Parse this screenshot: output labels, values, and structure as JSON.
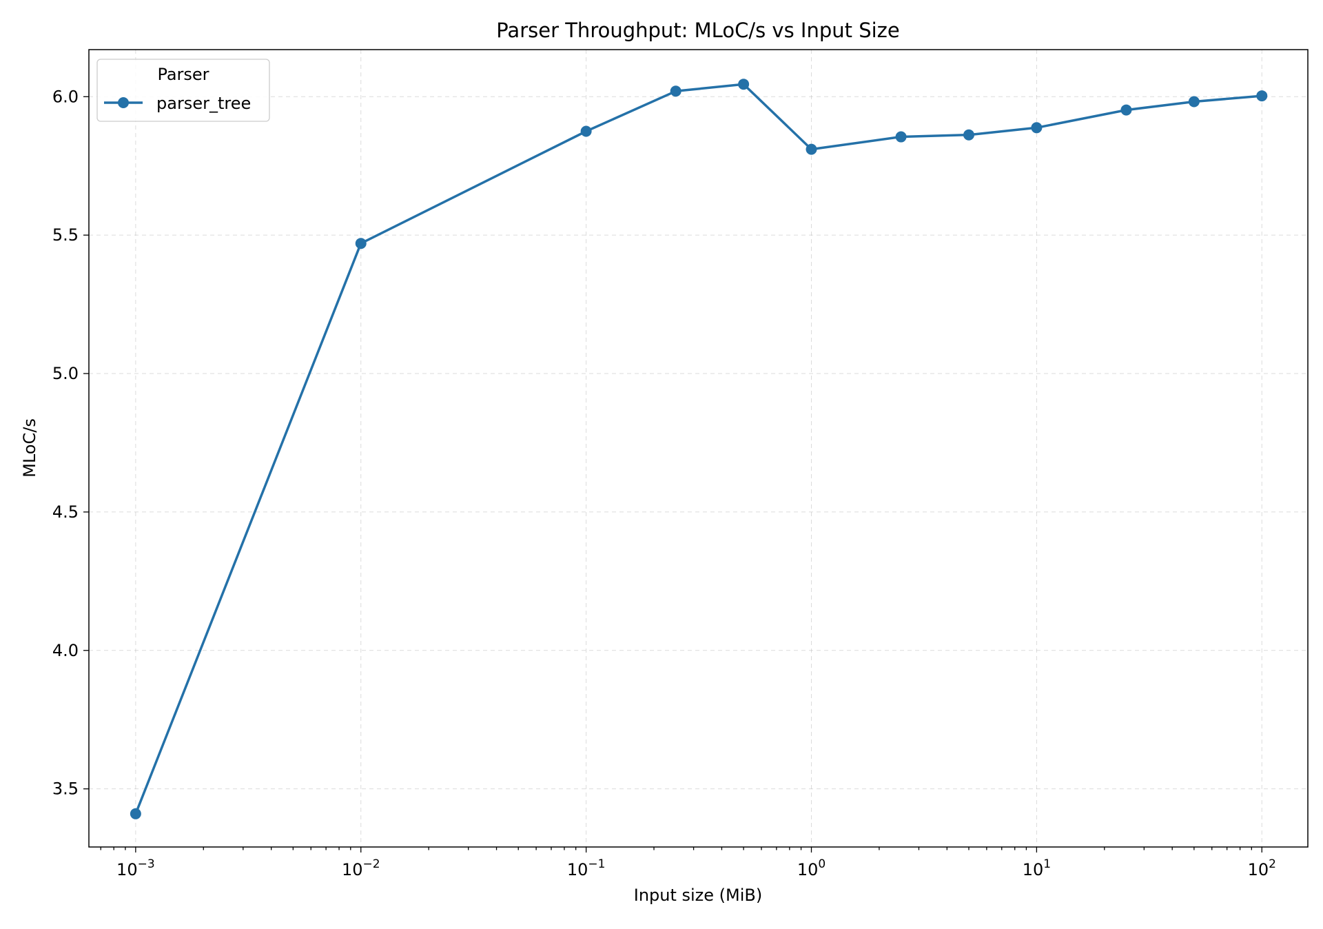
{
  "chart_data": {
    "type": "line",
    "title": "Parser Throughput: MLoC/s vs Input Size",
    "xlabel": "Input size (MiB)",
    "ylabel": "MLoC/s",
    "xscale": "log",
    "xlim": [
      0.00062,
      160
    ],
    "ylim": [
      3.29,
      6.17
    ],
    "grid": true,
    "x_ticks": [
      {
        "value": 0.001,
        "base": "10",
        "exp": "−3"
      },
      {
        "value": 0.01,
        "base": "10",
        "exp": "−2"
      },
      {
        "value": 0.1,
        "base": "10",
        "exp": "−1"
      },
      {
        "value": 1,
        "base": "10",
        "exp": "0"
      },
      {
        "value": 10,
        "base": "10",
        "exp": "1"
      },
      {
        "value": 100,
        "base": "10",
        "exp": "2"
      }
    ],
    "y_ticks": [
      {
        "value": 3.5,
        "label": "3.5"
      },
      {
        "value": 4.0,
        "label": "4.0"
      },
      {
        "value": 4.5,
        "label": "4.5"
      },
      {
        "value": 5.0,
        "label": "5.0"
      },
      {
        "value": 5.5,
        "label": "5.5"
      },
      {
        "value": 6.0,
        "label": "6.0"
      }
    ],
    "legend": {
      "title": "Parser",
      "placement": "top-left"
    },
    "series": [
      {
        "name": "parser_tree",
        "color": "#2471a8",
        "marker": "circle",
        "x": [
          0.001,
          0.01,
          0.1,
          0.25,
          0.5,
          1,
          2.5,
          5,
          10,
          25,
          50,
          100
        ],
        "y": [
          3.41,
          5.47,
          5.875,
          6.02,
          6.045,
          5.81,
          5.855,
          5.862,
          5.888,
          5.952,
          5.982,
          6.003
        ]
      }
    ]
  }
}
